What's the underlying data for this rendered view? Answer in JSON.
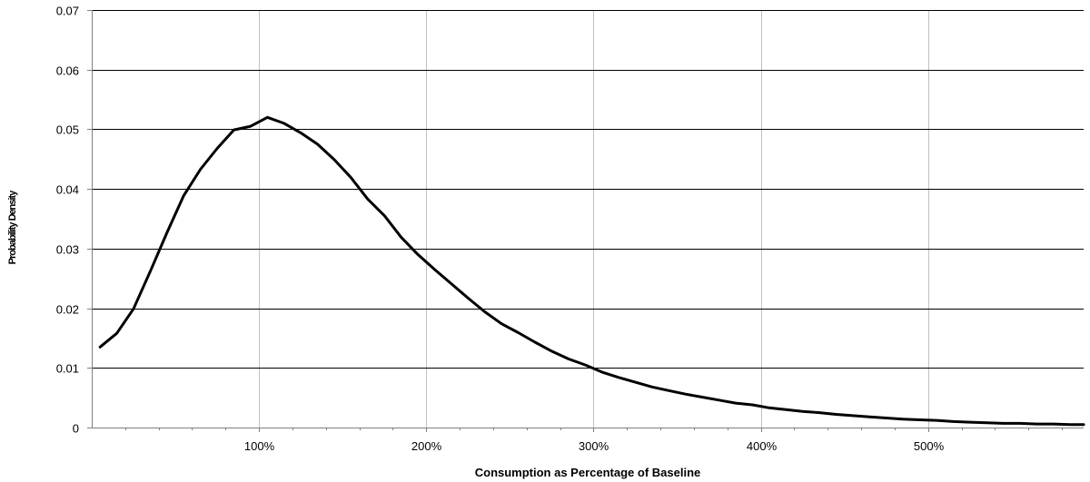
{
  "chart_data": {
    "type": "line",
    "title": "",
    "xlabel": "Consumption as Percentage of Baseline",
    "ylabel": "Probability Density",
    "xlim": [
      0,
      593
    ],
    "ylim": [
      0,
      0.07
    ],
    "grid": true,
    "legend": "none",
    "colors": {
      "line": "#000000",
      "grid_vertical": "#c0c0c0",
      "grid_horizontal": "#000000",
      "axis": "#808080"
    },
    "x_ticks": [
      {
        "value": 100,
        "label": "100%"
      },
      {
        "value": 200,
        "label": "200%"
      },
      {
        "value": 300,
        "label": "300%"
      },
      {
        "value": 400,
        "label": "400%"
      },
      {
        "value": 500,
        "label": "500%"
      }
    ],
    "y_ticks": [
      {
        "value": 0,
        "label": "0"
      },
      {
        "value": 0.01,
        "label": "0.01"
      },
      {
        "value": 0.02,
        "label": "0.02"
      },
      {
        "value": 0.03,
        "label": "0.03"
      },
      {
        "value": 0.04,
        "label": "0.04"
      },
      {
        "value": 0.05,
        "label": "0.05"
      },
      {
        "value": 0.06,
        "label": "0.06"
      },
      {
        "value": 0.07,
        "label": "0.07"
      }
    ],
    "series": [
      {
        "x": [
          5,
          15,
          25,
          35,
          45,
          55,
          65,
          75,
          85,
          95,
          105,
          115,
          125,
          135,
          145,
          155,
          165,
          175,
          185,
          195,
          205,
          215,
          225,
          235,
          245,
          255,
          265,
          275,
          285,
          295,
          305,
          315,
          325,
          335,
          345,
          355,
          365,
          375,
          385,
          395,
          405,
          415,
          425,
          435,
          445,
          455,
          465,
          475,
          485,
          495,
          505,
          515,
          525,
          535,
          545,
          555,
          565,
          575,
          585,
          593
        ],
        "values": [
          0.0135,
          0.0158,
          0.0199,
          0.0262,
          0.0327,
          0.0389,
          0.0433,
          0.0468,
          0.0499,
          0.0505,
          0.052,
          0.051,
          0.0494,
          0.0475,
          0.0449,
          0.0419,
          0.0383,
          0.0355,
          0.0319,
          0.029,
          0.0265,
          0.0241,
          0.0217,
          0.0194,
          0.0174,
          0.0159,
          0.0143,
          0.0128,
          0.0115,
          0.0105,
          0.0093,
          0.0084,
          0.0076,
          0.0068,
          0.0062,
          0.0056,
          0.0051,
          0.0046,
          0.0041,
          0.0038,
          0.0033,
          0.003,
          0.0027,
          0.0025,
          0.0022,
          0.002,
          0.0018,
          0.0016,
          0.0014,
          0.0013,
          0.0012,
          0.001,
          0.0009,
          0.0008,
          0.0007,
          0.0007,
          0.0006,
          0.0006,
          0.0005,
          0.0005
        ]
      }
    ]
  }
}
